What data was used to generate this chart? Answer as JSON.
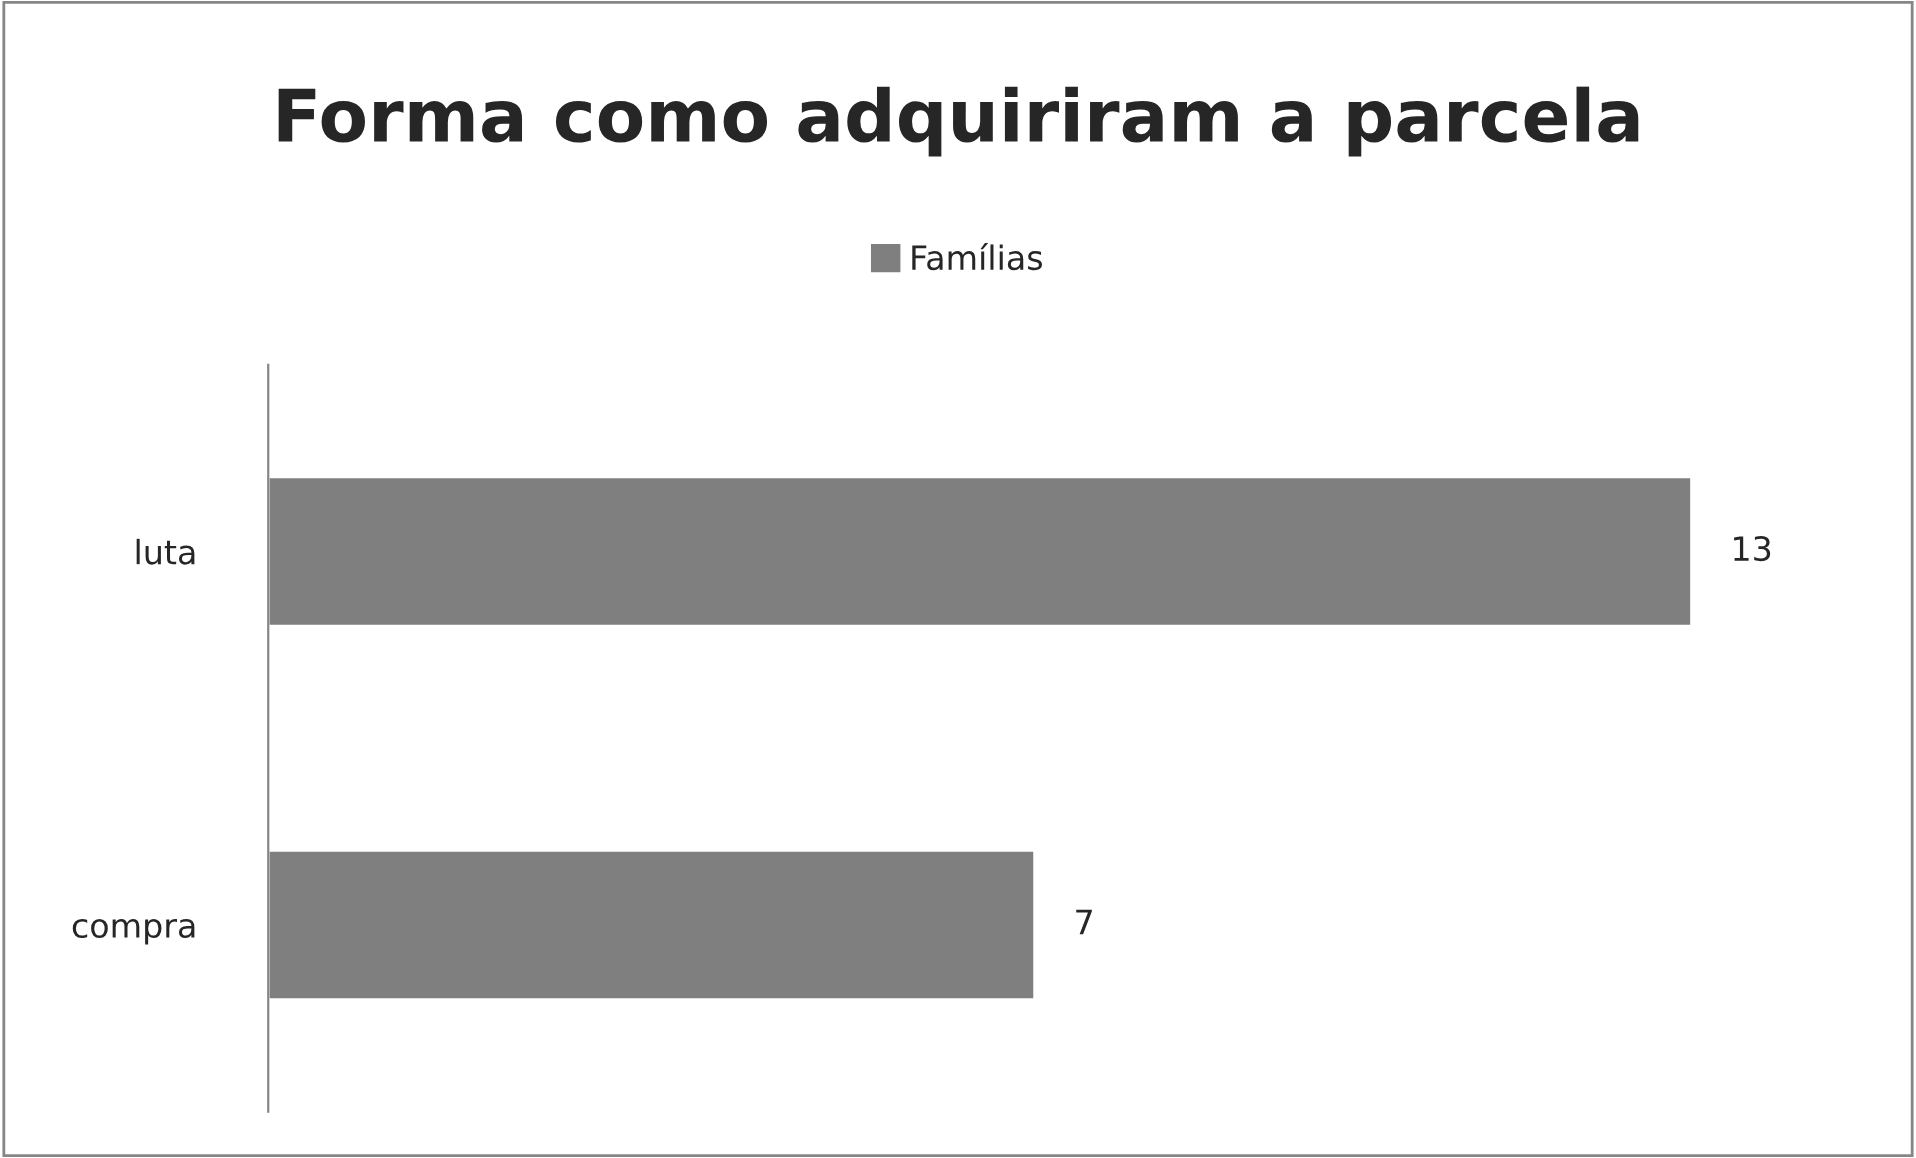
{
  "chart_data": {
    "type": "bar",
    "orientation": "horizontal",
    "title": "Forma como adquiriram a parcela",
    "categories": [
      "luta",
      "compra"
    ],
    "series": [
      {
        "name": "Famílias",
        "color": "#7f7f7f",
        "values": [
          13,
          7
        ]
      }
    ],
    "data_labels": true,
    "legend": "top",
    "tick_labels": "y",
    "grid": false
  }
}
